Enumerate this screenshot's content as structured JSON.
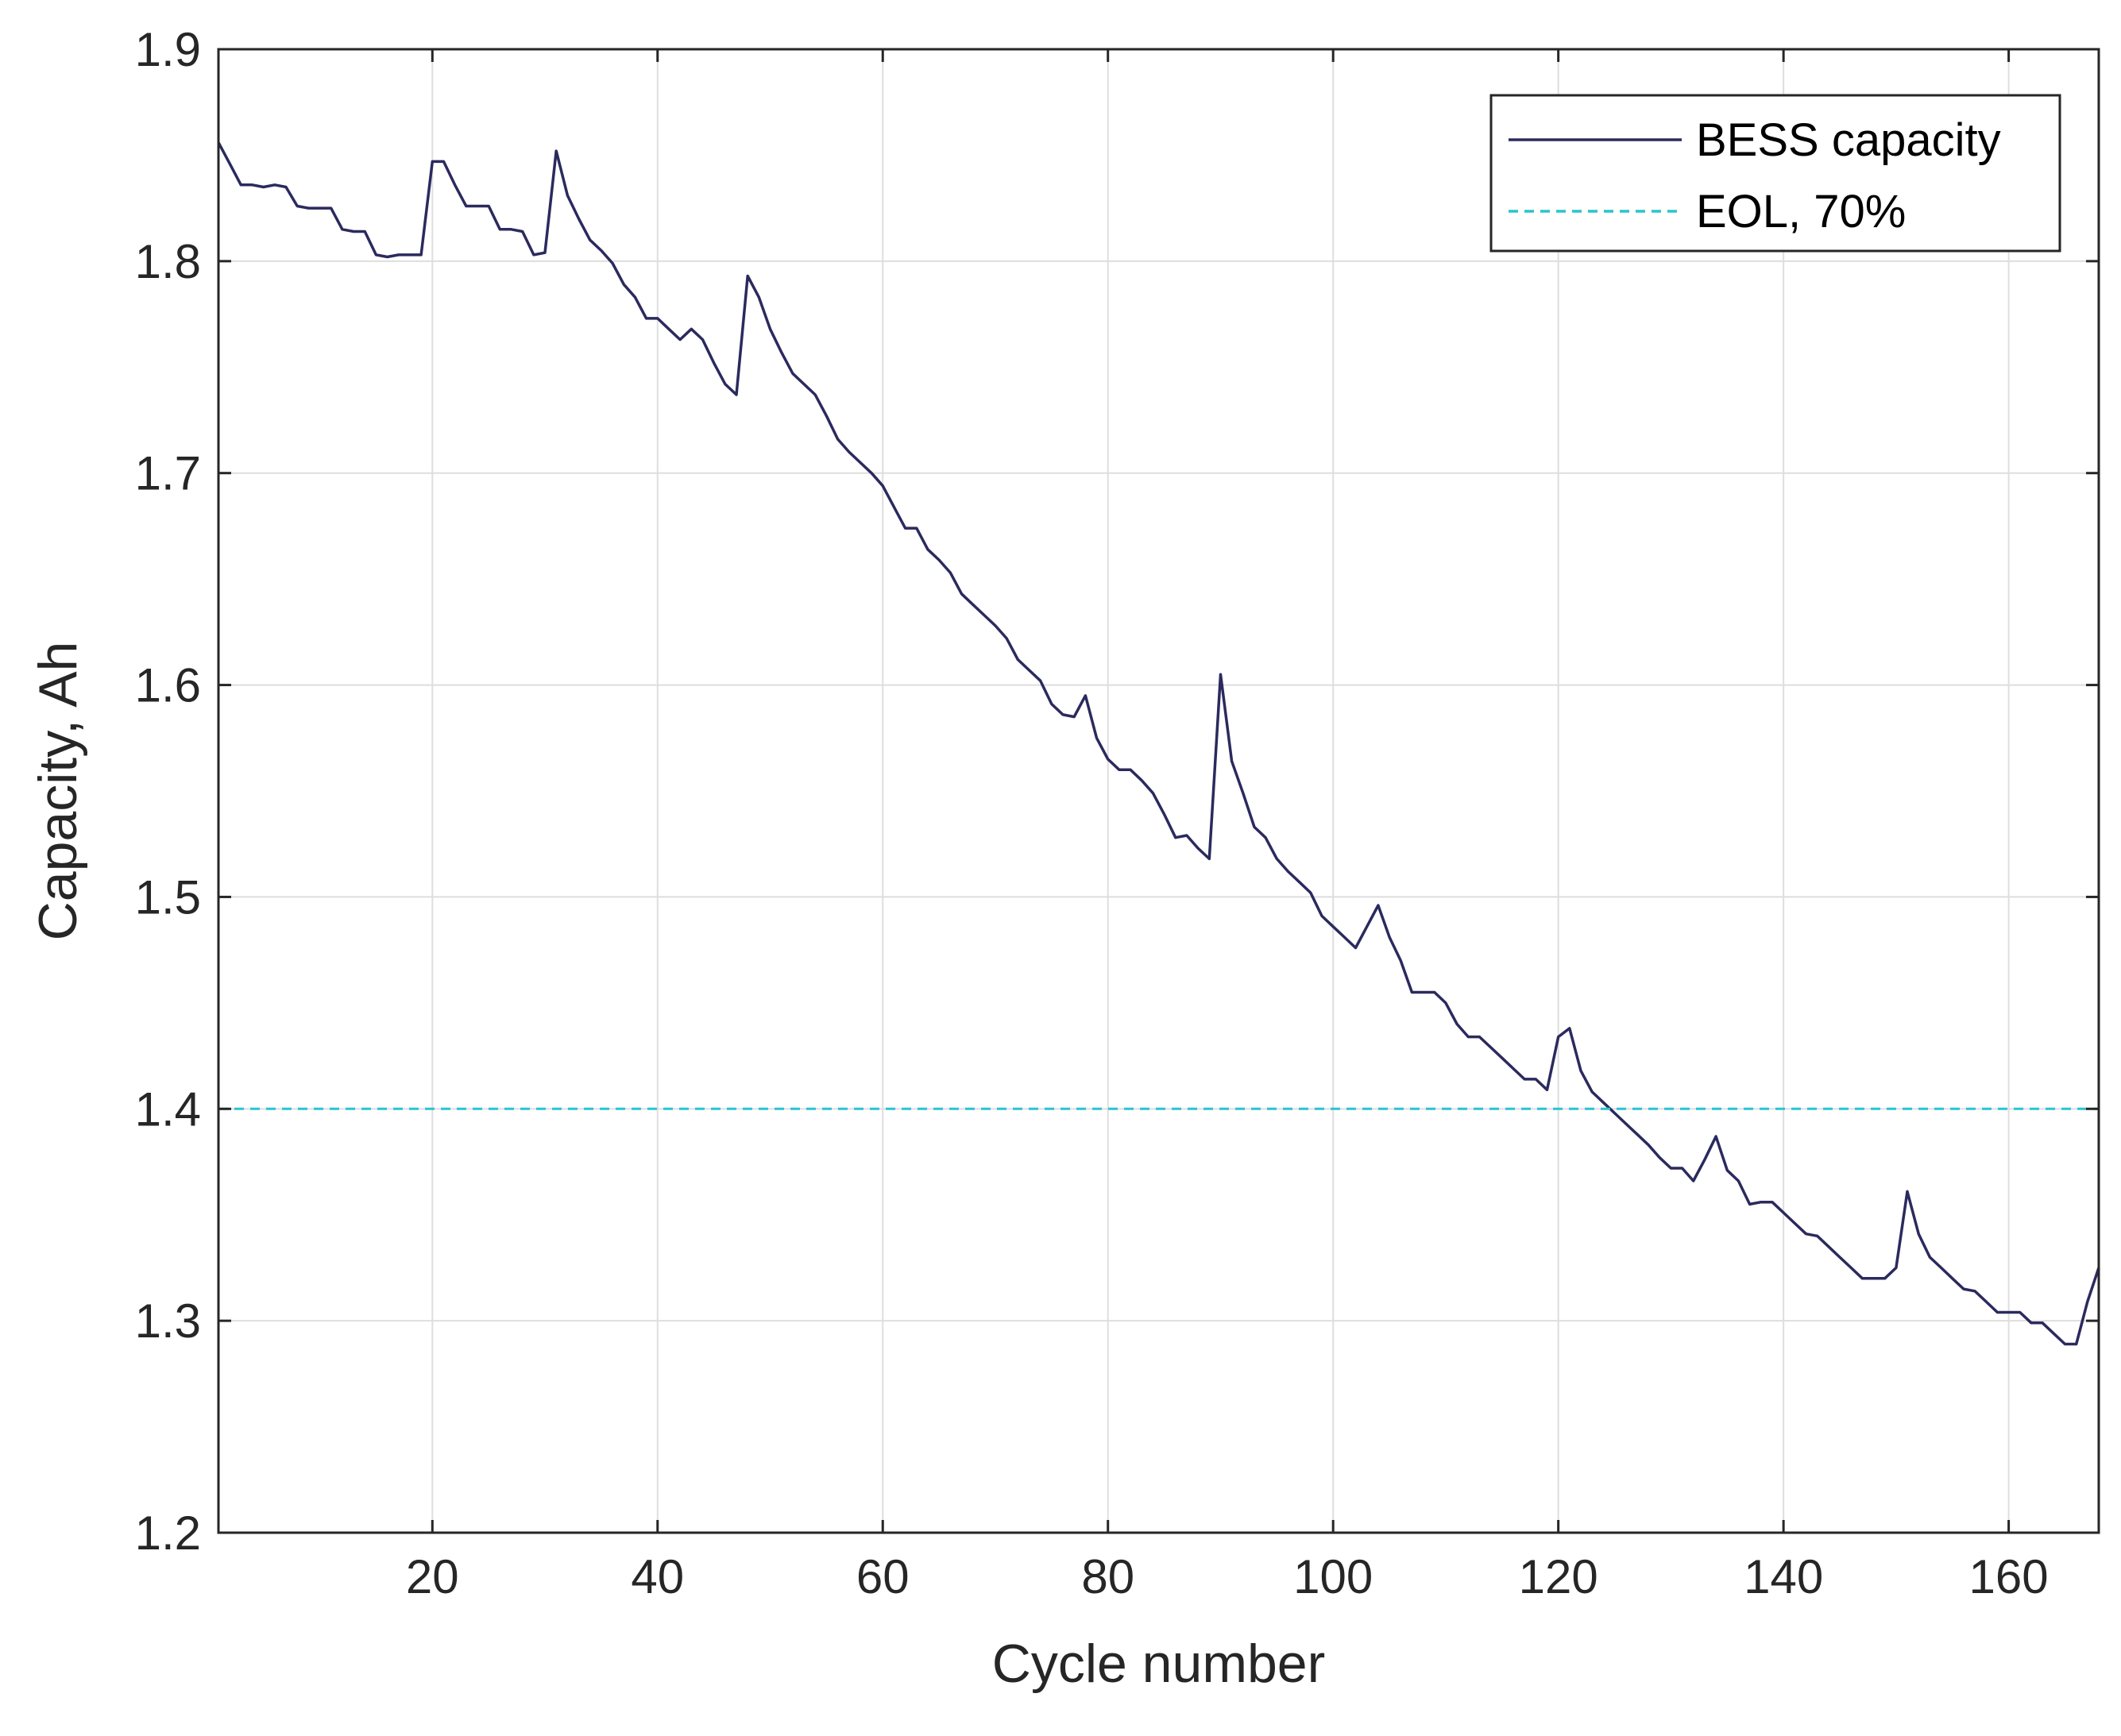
{
  "chart_data": {
    "type": "line",
    "title": "",
    "xlabel": "Cycle number",
    "ylabel": "Capacity, Ah",
    "xlim": [
      1,
      168
    ],
    "ylim": [
      1.2,
      1.9
    ],
    "xticks": [
      "20",
      "40",
      "60",
      "80",
      "100",
      "120",
      "140",
      "160"
    ],
    "yticks": [
      "1.2",
      "1.3",
      "1.4",
      "1.5",
      "1.6",
      "1.7",
      "1.8",
      "1.9"
    ],
    "grid": true,
    "legend_position": "top-right",
    "series": [
      {
        "name": "BESS capacity",
        "color": "#2b2a5e",
        "style": "solid",
        "x": [
          1,
          2,
          3,
          4,
          5,
          6,
          7,
          8,
          9,
          10,
          11,
          12,
          13,
          14,
          15,
          16,
          17,
          18,
          19,
          20,
          21,
          22,
          23,
          24,
          25,
          26,
          27,
          28,
          29,
          30,
          31,
          32,
          33,
          34,
          35,
          36,
          37,
          38,
          39,
          40,
          41,
          42,
          43,
          44,
          45,
          46,
          47,
          48,
          49,
          50,
          51,
          52,
          53,
          54,
          55,
          56,
          57,
          58,
          59,
          60,
          61,
          62,
          63,
          64,
          65,
          66,
          67,
          68,
          69,
          70,
          71,
          72,
          73,
          74,
          75,
          76,
          77,
          78,
          79,
          80,
          81,
          82,
          83,
          84,
          85,
          86,
          87,
          88,
          89,
          90,
          91,
          92,
          93,
          94,
          95,
          96,
          97,
          98,
          99,
          100,
          101,
          102,
          103,
          104,
          105,
          106,
          107,
          108,
          109,
          110,
          111,
          112,
          113,
          114,
          115,
          116,
          117,
          118,
          119,
          120,
          121,
          122,
          123,
          124,
          125,
          126,
          127,
          128,
          129,
          130,
          131,
          132,
          133,
          134,
          135,
          136,
          137,
          138,
          139,
          140,
          141,
          142,
          143,
          144,
          145,
          146,
          147,
          148,
          149,
          150,
          151,
          152,
          153,
          154,
          155,
          156,
          157,
          158,
          159,
          160,
          161,
          162,
          163,
          164,
          165,
          166,
          167,
          168
        ],
        "y": [
          1.856,
          1.846,
          1.836,
          1.836,
          1.835,
          1.836,
          1.835,
          1.826,
          1.825,
          1.825,
          1.825,
          1.815,
          1.814,
          1.814,
          1.803,
          1.802,
          1.803,
          1.803,
          1.803,
          1.847,
          1.847,
          1.836,
          1.826,
          1.826,
          1.826,
          1.815,
          1.815,
          1.814,
          1.803,
          1.804,
          1.852,
          1.831,
          1.82,
          1.81,
          1.805,
          1.799,
          1.789,
          1.783,
          1.773,
          1.773,
          1.768,
          1.763,
          1.768,
          1.763,
          1.752,
          1.742,
          1.737,
          1.793,
          1.783,
          1.768,
          1.757,
          1.747,
          1.742,
          1.737,
          1.727,
          1.716,
          1.71,
          1.705,
          1.7,
          1.694,
          1.684,
          1.674,
          1.674,
          1.664,
          1.659,
          1.653,
          1.643,
          1.638,
          1.633,
          1.628,
          1.622,
          1.612,
          1.607,
          1.602,
          1.591,
          1.586,
          1.585,
          1.595,
          1.575,
          1.565,
          1.56,
          1.56,
          1.555,
          1.549,
          1.539,
          1.528,
          1.529,
          1.523,
          1.518,
          1.605,
          1.564,
          1.549,
          1.533,
          1.528,
          1.518,
          1.512,
          1.507,
          1.502,
          1.491,
          1.486,
          1.481,
          1.476,
          1.486,
          1.496,
          1.481,
          1.47,
          1.455,
          1.455,
          1.455,
          1.45,
          1.44,
          1.434,
          1.434,
          1.429,
          1.424,
          1.419,
          1.414,
          1.414,
          1.409,
          1.434,
          1.438,
          1.418,
          1.408,
          1.403,
          1.398,
          1.393,
          1.388,
          1.383,
          1.377,
          1.372,
          1.372,
          1.366,
          1.376,
          1.387,
          1.371,
          1.366,
          1.355,
          1.356,
          1.356,
          1.351,
          1.346,
          1.341,
          1.34,
          1.335,
          1.33,
          1.325,
          1.32,
          1.32,
          1.32,
          1.325,
          1.361,
          1.341,
          1.33,
          1.325,
          1.32,
          1.315,
          1.314,
          1.309,
          1.304,
          1.304,
          1.304,
          1.299,
          1.299,
          1.294,
          1.289,
          1.289,
          1.309,
          1.325
        ]
      },
      {
        "name": "EOL, 70%",
        "color": "#29c4cf",
        "style": "dashed",
        "x": [
          1,
          168
        ],
        "y": [
          1.4,
          1.4
        ]
      }
    ]
  }
}
